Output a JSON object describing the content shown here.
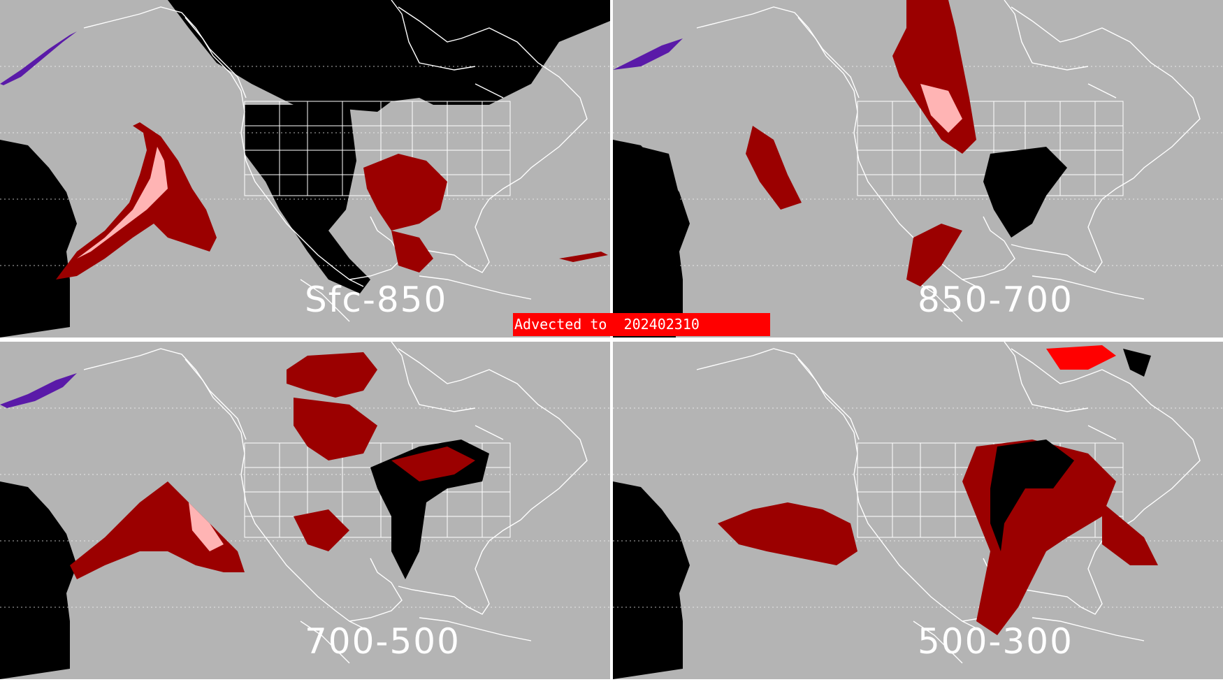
{
  "banner": {
    "text": "Advected to  202402310",
    "color": "#ff0000"
  },
  "panels": [
    {
      "id": "sfc-850",
      "label": "Sfc-850"
    },
    {
      "id": "850-700",
      "label": "850-700"
    },
    {
      "id": "700-500",
      "label": "700-500"
    },
    {
      "id": "500-300",
      "label": "500-300"
    }
  ],
  "colors": {
    "background_gray": "#b4b4b4",
    "no_data_black": "#000000",
    "dark_red": "#9b0000",
    "pink": "#ffb4b4",
    "bright_red": "#ff0000",
    "purple": "#5a1aa8",
    "borders_white": "#ffffff"
  }
}
